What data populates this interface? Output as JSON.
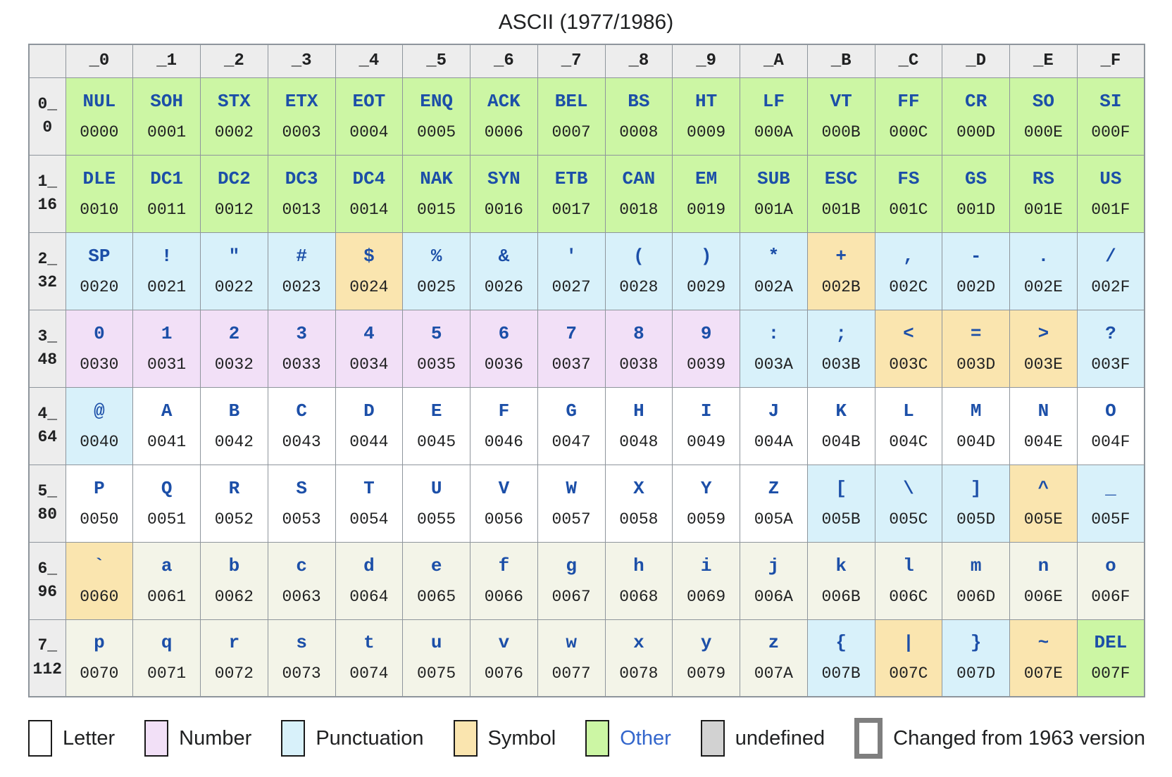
{
  "title": "ASCII (1977/1986)",
  "colors": {
    "letter": "#ffffff",
    "lower": "#f3f4e8",
    "number": "#f2e0f7",
    "punct": "#d8f1fa",
    "symbol": "#fae5af",
    "other": "#ccf6a4",
    "undef": "#d2d2d2",
    "gridline": "#8e959c",
    "thickborder": "#7f7f7f",
    "headerbg": "#ededed",
    "chartext": "#1c4fa8",
    "codetext": "#202122",
    "linkblue": "#3366cc"
  },
  "chart_data": {
    "type": "table",
    "title": "ASCII (1977/1986)",
    "col_headers": [
      "",
      "_0",
      "_1",
      "_2",
      "_3",
      "_4",
      "_5",
      "_6",
      "_7",
      "_8",
      "_9",
      "_A",
      "_B",
      "_C",
      "_D",
      "_E",
      "_F"
    ],
    "category_names": {
      "letter": "Letter",
      "lower": "Letter",
      "number": "Number",
      "punct": "Punctuation",
      "symbol": "Symbol",
      "other": "Other"
    },
    "changed_meaning": "Changed from 1963 version",
    "rows": [
      {
        "hex": "0_",
        "dec": "0",
        "cells": [
          [
            "NUL",
            "0000",
            "other",
            0
          ],
          [
            "SOH",
            "0001",
            "other",
            1
          ],
          [
            "STX",
            "0002",
            "other",
            1
          ],
          [
            "ETX",
            "0003",
            "other",
            1
          ],
          [
            "EOT",
            "0004",
            "other",
            0
          ],
          [
            "ENQ",
            "0005",
            "other",
            1
          ],
          [
            "ACK",
            "0006",
            "other",
            1
          ],
          [
            "BEL",
            "0007",
            "other",
            0
          ],
          [
            "BS",
            "0008",
            "other",
            1
          ],
          [
            "HT",
            "0009",
            "other",
            0
          ],
          [
            "LF",
            "000A",
            "other",
            0
          ],
          [
            "VT",
            "000B",
            "other",
            0
          ],
          [
            "FF",
            "000C",
            "other",
            0
          ],
          [
            "CR",
            "000D",
            "other",
            0
          ],
          [
            "SO",
            "000E",
            "other",
            0
          ],
          [
            "SI",
            "000F",
            "other",
            0
          ]
        ]
      },
      {
        "hex": "1_",
        "dec": "16",
        "cells": [
          [
            "DLE",
            "0010",
            "other",
            1
          ],
          [
            "DC1",
            "0011",
            "other",
            0
          ],
          [
            "DC2",
            "0012",
            "other",
            0
          ],
          [
            "DC3",
            "0013",
            "other",
            0
          ],
          [
            "DC4",
            "0014",
            "other",
            0
          ],
          [
            "NAK",
            "0015",
            "other",
            1
          ],
          [
            "SYN",
            "0016",
            "other",
            1
          ],
          [
            "ETB",
            "0017",
            "other",
            1
          ],
          [
            "CAN",
            "0018",
            "other",
            1
          ],
          [
            "EM",
            "0019",
            "other",
            1
          ],
          [
            "SUB",
            "001A",
            "other",
            1
          ],
          [
            "ESC",
            "001B",
            "other",
            1
          ],
          [
            "FS",
            "001C",
            "other",
            1
          ],
          [
            "GS",
            "001D",
            "other",
            1
          ],
          [
            "RS",
            "001E",
            "other",
            1
          ],
          [
            "US",
            "001F",
            "other",
            1
          ]
        ]
      },
      {
        "hex": "2_",
        "dec": "32",
        "cells": [
          [
            "SP",
            "0020",
            "punct",
            0
          ],
          [
            "!",
            "0021",
            "punct",
            0
          ],
          [
            "\"",
            "0022",
            "punct",
            0
          ],
          [
            "#",
            "0023",
            "punct",
            0
          ],
          [
            "$",
            "0024",
            "symbol",
            0
          ],
          [
            "%",
            "0025",
            "punct",
            0
          ],
          [
            "&",
            "0026",
            "punct",
            0
          ],
          [
            "'",
            "0027",
            "punct",
            0
          ],
          [
            "(",
            "0028",
            "punct",
            0
          ],
          [
            ")",
            "0029",
            "punct",
            0
          ],
          [
            "*",
            "002A",
            "punct",
            0
          ],
          [
            "+",
            "002B",
            "symbol",
            0
          ],
          [
            ",",
            "002C",
            "punct",
            0
          ],
          [
            "-",
            "002D",
            "punct",
            0
          ],
          [
            ".",
            "002E",
            "punct",
            0
          ],
          [
            "/",
            "002F",
            "punct",
            0
          ]
        ]
      },
      {
        "hex": "3_",
        "dec": "48",
        "cells": [
          [
            "0",
            "0030",
            "number",
            0
          ],
          [
            "1",
            "0031",
            "number",
            0
          ],
          [
            "2",
            "0032",
            "number",
            0
          ],
          [
            "3",
            "0033",
            "number",
            0
          ],
          [
            "4",
            "0034",
            "number",
            0
          ],
          [
            "5",
            "0035",
            "number",
            0
          ],
          [
            "6",
            "0036",
            "number",
            0
          ],
          [
            "7",
            "0037",
            "number",
            0
          ],
          [
            "8",
            "0038",
            "number",
            0
          ],
          [
            "9",
            "0039",
            "number",
            0
          ],
          [
            ":",
            "003A",
            "punct",
            0
          ],
          [
            ";",
            "003B",
            "punct",
            0
          ],
          [
            "<",
            "003C",
            "symbol",
            0
          ],
          [
            "=",
            "003D",
            "symbol",
            0
          ],
          [
            ">",
            "003E",
            "symbol",
            0
          ],
          [
            "?",
            "003F",
            "punct",
            0
          ]
        ]
      },
      {
        "hex": "4_",
        "dec": "64",
        "cells": [
          [
            "@",
            "0040",
            "punct",
            1
          ],
          [
            "A",
            "0041",
            "letter",
            0
          ],
          [
            "B",
            "0042",
            "letter",
            0
          ],
          [
            "C",
            "0043",
            "letter",
            0
          ],
          [
            "D",
            "0044",
            "letter",
            0
          ],
          [
            "E",
            "0045",
            "letter",
            0
          ],
          [
            "F",
            "0046",
            "letter",
            0
          ],
          [
            "G",
            "0047",
            "letter",
            0
          ],
          [
            "H",
            "0048",
            "letter",
            0
          ],
          [
            "I",
            "0049",
            "letter",
            0
          ],
          [
            "J",
            "004A",
            "letter",
            0
          ],
          [
            "K",
            "004B",
            "letter",
            0
          ],
          [
            "L",
            "004C",
            "letter",
            0
          ],
          [
            "M",
            "004D",
            "letter",
            0
          ],
          [
            "N",
            "004E",
            "letter",
            0
          ],
          [
            "O",
            "004F",
            "letter",
            0
          ]
        ]
      },
      {
        "hex": "5_",
        "dec": "80",
        "cells": [
          [
            "P",
            "0050",
            "letter",
            0
          ],
          [
            "Q",
            "0051",
            "letter",
            0
          ],
          [
            "R",
            "0052",
            "letter",
            0
          ],
          [
            "S",
            "0053",
            "letter",
            0
          ],
          [
            "T",
            "0054",
            "letter",
            0
          ],
          [
            "U",
            "0055",
            "letter",
            0
          ],
          [
            "V",
            "0056",
            "letter",
            0
          ],
          [
            "W",
            "0057",
            "letter",
            0
          ],
          [
            "X",
            "0058",
            "letter",
            0
          ],
          [
            "Y",
            "0059",
            "letter",
            0
          ],
          [
            "Z",
            "005A",
            "letter",
            0
          ],
          [
            "[",
            "005B",
            "punct",
            0
          ],
          [
            "\\",
            "005C",
            "punct",
            1
          ],
          [
            "]",
            "005D",
            "punct",
            0
          ],
          [
            "^",
            "005E",
            "symbol",
            1
          ],
          [
            "_",
            "005F",
            "punct",
            1
          ]
        ]
      },
      {
        "hex": "6_",
        "dec": "96",
        "cells": [
          [
            "`",
            "0060",
            "symbol",
            1
          ],
          [
            "a",
            "0061",
            "lower",
            0
          ],
          [
            "b",
            "0062",
            "lower",
            0
          ],
          [
            "c",
            "0063",
            "lower",
            0
          ],
          [
            "d",
            "0064",
            "lower",
            0
          ],
          [
            "e",
            "0065",
            "lower",
            0
          ],
          [
            "f",
            "0066",
            "lower",
            0
          ],
          [
            "g",
            "0067",
            "lower",
            0
          ],
          [
            "h",
            "0068",
            "lower",
            0
          ],
          [
            "i",
            "0069",
            "lower",
            0
          ],
          [
            "j",
            "006A",
            "lower",
            0
          ],
          [
            "k",
            "006B",
            "lower",
            0
          ],
          [
            "l",
            "006C",
            "lower",
            0
          ],
          [
            "m",
            "006D",
            "lower",
            0
          ],
          [
            "n",
            "006E",
            "lower",
            0
          ],
          [
            "o",
            "006F",
            "lower",
            0
          ]
        ]
      },
      {
        "hex": "7_",
        "dec": "112",
        "cells": [
          [
            "p",
            "0070",
            "lower",
            0
          ],
          [
            "q",
            "0071",
            "lower",
            0
          ],
          [
            "r",
            "0072",
            "lower",
            0
          ],
          [
            "s",
            "0073",
            "lower",
            0
          ],
          [
            "t",
            "0074",
            "lower",
            0
          ],
          [
            "u",
            "0075",
            "lower",
            0
          ],
          [
            "v",
            "0076",
            "lower",
            0
          ],
          [
            "w",
            "0077",
            "lower",
            0
          ],
          [
            "x",
            "0078",
            "lower",
            0
          ],
          [
            "y",
            "0079",
            "lower",
            0
          ],
          [
            "z",
            "007A",
            "lower",
            0
          ],
          [
            "{",
            "007B",
            "punct",
            0
          ],
          [
            "|",
            "007C",
            "symbol",
            1
          ],
          [
            "}",
            "007D",
            "punct",
            0
          ],
          [
            "~",
            "007E",
            "symbol",
            1
          ],
          [
            "DEL",
            "007F",
            "other",
            0
          ]
        ]
      }
    ]
  },
  "legend": {
    "items": [
      {
        "label": "Letter",
        "swatch": "letter",
        "link": false
      },
      {
        "label": "Number",
        "swatch": "number",
        "link": false
      },
      {
        "label": "Punctuation",
        "swatch": "punct",
        "link": false
      },
      {
        "label": "Symbol",
        "swatch": "symbol",
        "link": false
      },
      {
        "label": "Other",
        "swatch": "other",
        "link": true
      },
      {
        "label": "undefined",
        "swatch": "undef",
        "link": false
      },
      {
        "label": "Changed from 1963 version",
        "swatch": "changed",
        "link": false
      }
    ]
  }
}
